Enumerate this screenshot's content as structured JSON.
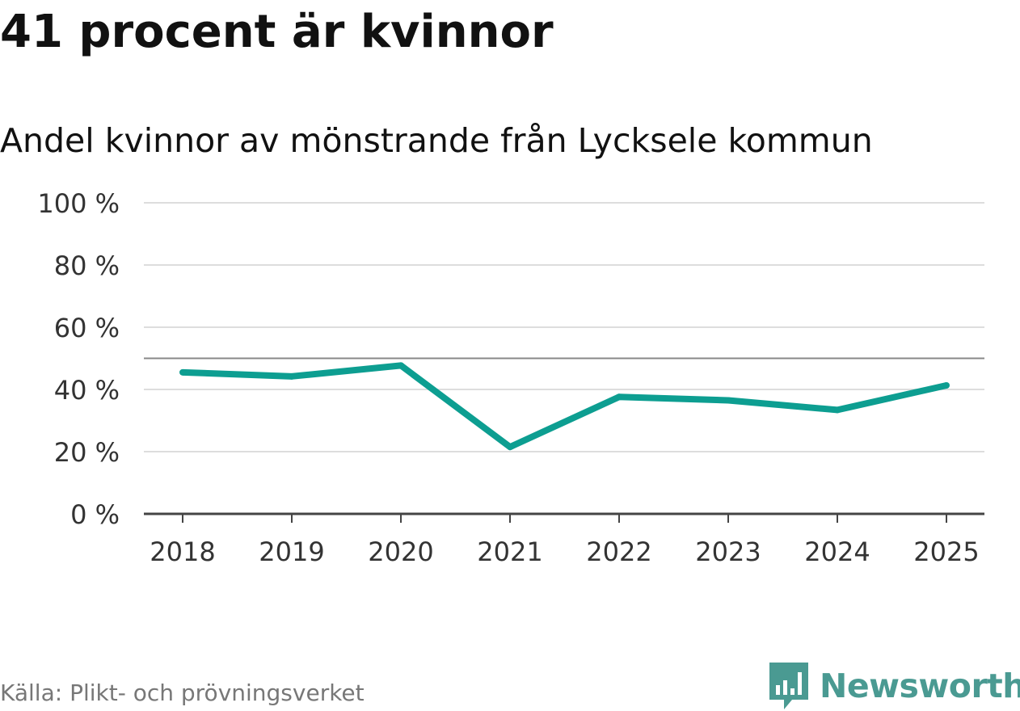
{
  "header": {
    "title": "41 procent är kvinnor",
    "subtitle": "Andel kvinnor av mönstrande från Lycksele kommun"
  },
  "footer": {
    "source": "Källa: Plikt- och prövningsverket",
    "brand": "Newsworthy"
  },
  "colors": {
    "line": "#0d9e91",
    "grid": "#dddddd",
    "reference_line": "#888888",
    "axis": "#444444",
    "brand": "#4a9a92"
  },
  "chart_data": {
    "type": "line",
    "title": "41 procent är kvinnor",
    "subtitle": "Andel kvinnor av mönstrande från Lycksele kommun",
    "xlabel": "",
    "ylabel": "",
    "categories": [
      "2018",
      "2019",
      "2020",
      "2021",
      "2022",
      "2023",
      "2024",
      "2025"
    ],
    "series": [
      {
        "name": "Andel kvinnor",
        "values": [
          45.5,
          44.2,
          47.7,
          21.5,
          37.6,
          36.5,
          33.4,
          41.3
        ]
      }
    ],
    "ylim": [
      0,
      100
    ],
    "yticks": [
      0,
      20,
      40,
      60,
      80,
      100
    ],
    "ytick_labels": [
      "0 %",
      "20 %",
      "40 %",
      "60 %",
      "80 %",
      "100 %"
    ],
    "reference_line": 50,
    "grid": true,
    "legend": "none"
  }
}
